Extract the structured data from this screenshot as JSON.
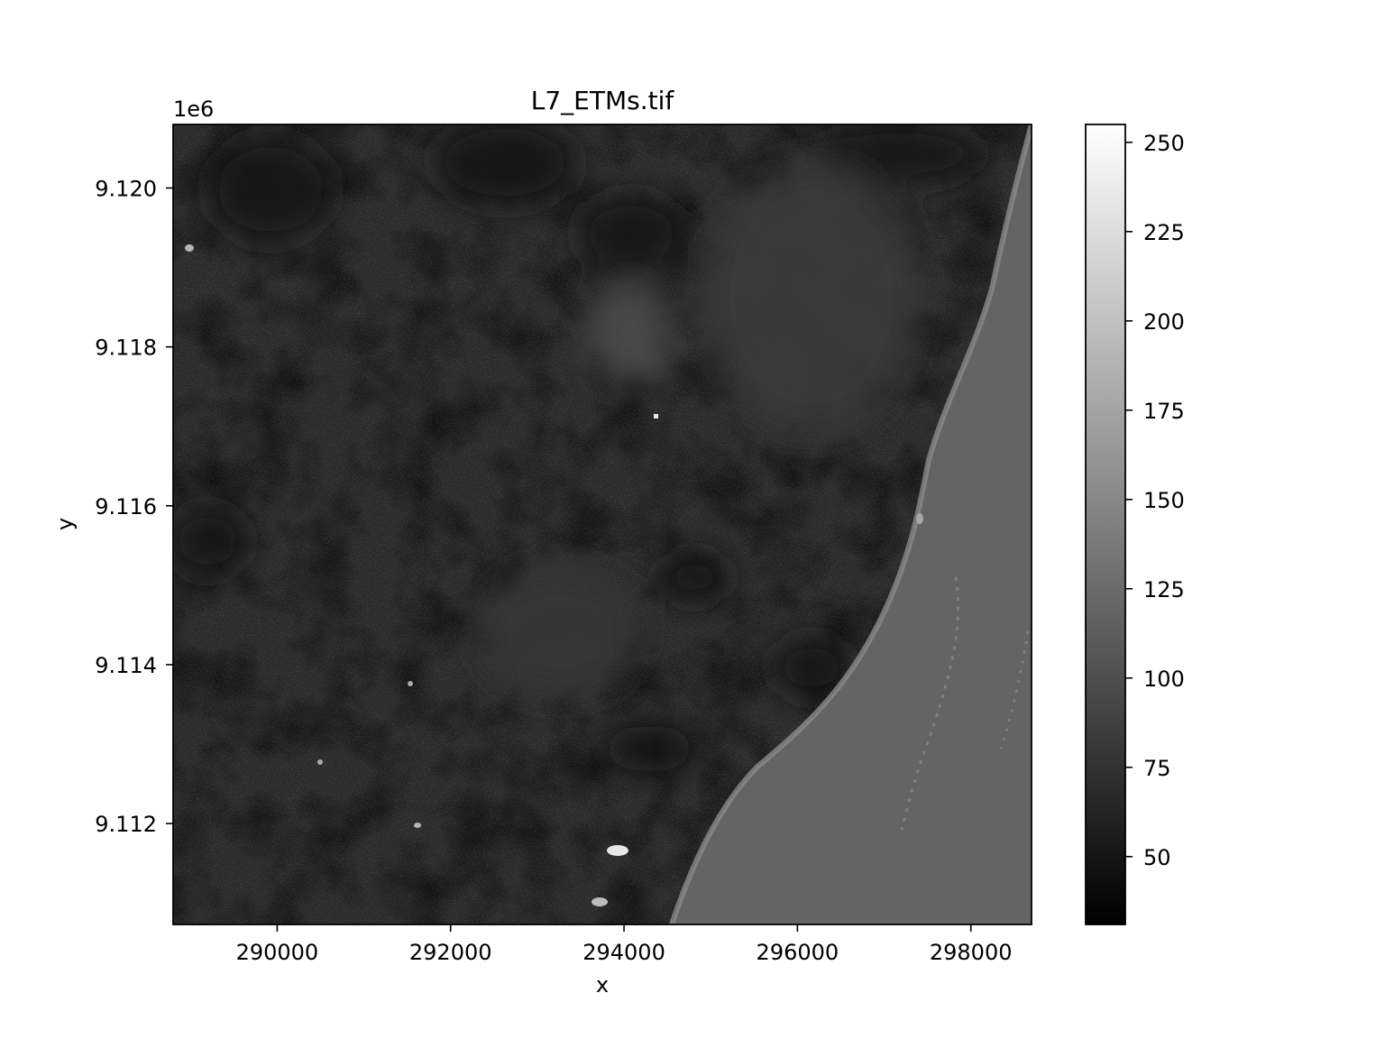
{
  "chart_data": {
    "type": "heatmap",
    "title": "L7_ETMs.tif",
    "xlabel": "x",
    "ylabel": "y",
    "x_range": [
      288800,
      298700
    ],
    "y_range": [
      9110730,
      9120800
    ],
    "y_offset_label": "1e6",
    "x_ticks": [
      290000,
      292000,
      294000,
      296000,
      298000
    ],
    "x_tick_labels": [
      "290000",
      "292000",
      "294000",
      "296000",
      "298000"
    ],
    "y_ticks": [
      9112000,
      9114000,
      9116000,
      9118000,
      9120000
    ],
    "y_tick_labels": [
      "9.112",
      "9.114",
      "9.116",
      "9.118",
      "9.120"
    ],
    "colormap": "gray",
    "color_range": [
      31,
      255
    ],
    "colorbar_ticks": [
      50,
      75,
      100,
      125,
      150,
      175,
      200,
      225,
      250
    ],
    "colorbar_tick_labels": [
      "50",
      "75",
      "100",
      "125",
      "150",
      "175",
      "200",
      "225",
      "250"
    ],
    "grid": false
  }
}
